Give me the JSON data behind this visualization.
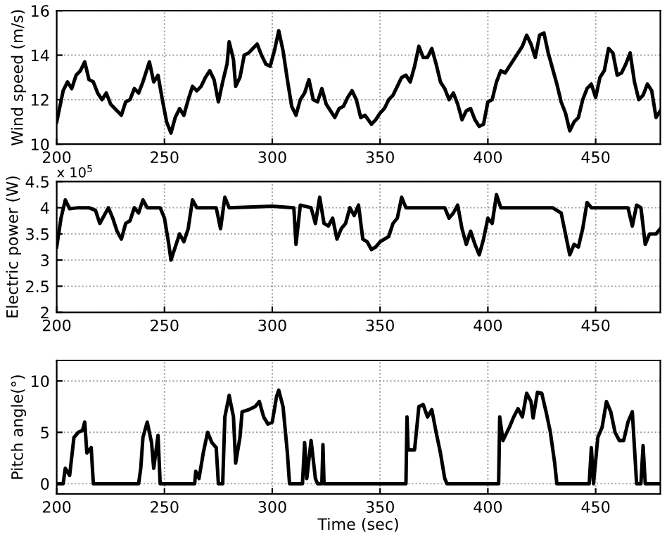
{
  "chart_data": [
    {
      "type": "line",
      "ylabel": "Wind speed (m/s)",
      "xlim": [
        200,
        480
      ],
      "ylim": [
        10,
        16
      ],
      "xticks": [
        200,
        250,
        300,
        350,
        400,
        450
      ],
      "yticks": [
        10,
        12,
        14,
        16
      ],
      "grid": true,
      "line_style": "solid",
      "series": [
        {
          "color": "#000000",
          "x": [
            200,
            203,
            205,
            207,
            209,
            211,
            213,
            215,
            217,
            219,
            221,
            223,
            225,
            228,
            230,
            232,
            234,
            236,
            238,
            240,
            242,
            243,
            245,
            247,
            249,
            251,
            253,
            255,
            257,
            259,
            261,
            263,
            265,
            267,
            269,
            271,
            273,
            275,
            277,
            279,
            280,
            282,
            283,
            285,
            287,
            289,
            291,
            293,
            295,
            297,
            299,
            301,
            303,
            305,
            307,
            309,
            311,
            313,
            315,
            317,
            319,
            321,
            323,
            325,
            327,
            329,
            331,
            333,
            335,
            337,
            339,
            341,
            343,
            346,
            348,
            350,
            352,
            354,
            356,
            358,
            360,
            362,
            364,
            366,
            368,
            370,
            372,
            374,
            376,
            378,
            380,
            382,
            384,
            386,
            388,
            390,
            392,
            394,
            396,
            398,
            400,
            402,
            404,
            406,
            408,
            410,
            412,
            414,
            416,
            418,
            420,
            422,
            424,
            426,
            428,
            430,
            432,
            434,
            436,
            438,
            440,
            442,
            444,
            446,
            448,
            450,
            452,
            454,
            456,
            458,
            460,
            462,
            464,
            466,
            468,
            470,
            472,
            474,
            476,
            478,
            480
          ],
          "values": [
            11.0,
            12.4,
            12.8,
            12.5,
            13.1,
            13.3,
            13.7,
            12.9,
            12.8,
            12.3,
            12.0,
            12.3,
            11.8,
            11.5,
            11.3,
            11.9,
            12.0,
            12.5,
            12.3,
            12.8,
            13.4,
            13.7,
            12.8,
            13.1,
            12.0,
            11.0,
            10.5,
            11.2,
            11.6,
            11.3,
            12.0,
            12.6,
            12.4,
            12.6,
            13.0,
            13.3,
            12.9,
            11.9,
            12.8,
            13.6,
            14.6,
            13.8,
            12.6,
            13.0,
            14.0,
            14.1,
            14.3,
            14.5,
            14.0,
            13.6,
            13.5,
            14.2,
            15.1,
            14.2,
            12.9,
            11.7,
            11.3,
            12.0,
            12.3,
            12.9,
            12.0,
            11.9,
            12.5,
            11.8,
            11.5,
            11.2,
            11.6,
            11.7,
            12.1,
            12.4,
            12.0,
            11.2,
            11.3,
            10.9,
            11.1,
            11.4,
            11.6,
            12.0,
            12.2,
            12.6,
            13.0,
            13.1,
            12.8,
            13.5,
            14.4,
            13.9,
            13.9,
            14.3,
            13.6,
            12.8,
            12.5,
            12.0,
            12.3,
            11.8,
            11.1,
            11.5,
            11.6,
            11.1,
            10.8,
            10.9,
            11.9,
            12.0,
            12.8,
            13.3,
            13.2,
            13.5,
            13.8,
            14.1,
            14.4,
            14.9,
            14.5,
            13.9,
            14.9,
            15.0,
            14.1,
            13.4,
            12.7,
            11.9,
            11.4,
            10.6,
            11.0,
            11.2,
            12.0,
            12.5,
            12.7,
            12.1,
            13.0,
            13.3,
            14.3,
            14.1,
            13.1,
            13.2,
            13.6,
            14.1,
            12.8,
            12.0,
            12.2,
            12.7,
            12.4,
            11.2,
            11.5
          ]
        }
      ]
    },
    {
      "type": "line",
      "ylabel": "Electric power (W)",
      "annotations": [
        "x 10$^{5}$"
      ],
      "xlim": [
        200,
        480
      ],
      "ylim": [
        2,
        4.5
      ],
      "xticks": [
        200,
        250,
        300,
        350,
        400,
        450
      ],
      "yticks": [
        2,
        2.5,
        3,
        3.5,
        4,
        4.5
      ],
      "grid": true,
      "line_style": "solid",
      "series": [
        {
          "color": "#000000",
          "x": [
            200,
            202,
            204,
            206,
            210,
            215,
            218,
            220,
            222,
            224,
            226,
            228,
            230,
            232,
            234,
            236,
            238,
            240,
            242,
            248,
            250,
            252,
            253,
            255,
            257,
            259,
            261,
            263,
            265,
            274,
            276,
            278,
            280,
            300,
            310,
            311,
            313,
            318,
            320,
            322,
            324,
            326,
            328,
            330,
            332,
            334,
            336,
            338,
            340,
            342,
            344,
            346,
            348,
            350,
            352,
            354,
            356,
            358,
            360,
            362,
            380,
            382,
            384,
            386,
            388,
            390,
            392,
            394,
            396,
            398,
            400,
            402,
            404,
            406,
            430,
            434,
            436,
            438,
            440,
            442,
            444,
            446,
            448,
            465,
            467,
            469,
            471,
            473,
            475,
            478,
            480
          ],
          "values": [
            3.25,
            3.8,
            4.15,
            3.98,
            4.0,
            4.0,
            3.95,
            3.7,
            3.85,
            4.0,
            3.8,
            3.55,
            3.4,
            3.7,
            3.75,
            4.0,
            3.9,
            4.15,
            4.0,
            4.0,
            3.8,
            3.3,
            3.0,
            3.25,
            3.5,
            3.35,
            3.6,
            4.15,
            4.0,
            4.0,
            3.6,
            4.2,
            4.0,
            4.03,
            4.0,
            3.3,
            4.05,
            4.0,
            3.7,
            4.2,
            3.7,
            3.65,
            3.8,
            3.4,
            3.6,
            3.7,
            4.0,
            3.85,
            4.05,
            3.4,
            3.35,
            3.2,
            3.25,
            3.35,
            3.4,
            3.45,
            3.7,
            3.8,
            4.2,
            4.0,
            4.0,
            3.8,
            3.9,
            4.05,
            3.6,
            3.3,
            3.55,
            3.3,
            3.1,
            3.4,
            3.8,
            3.7,
            4.25,
            4.0,
            4.0,
            3.9,
            3.5,
            3.1,
            3.3,
            3.25,
            3.6,
            4.1,
            4.0,
            4.0,
            3.65,
            4.05,
            4.0,
            3.3,
            3.5,
            3.5,
            3.6
          ]
        }
      ]
    },
    {
      "type": "line",
      "xlabel": "Time (sec)",
      "ylabel": "Pitch angle(°)",
      "xlim": [
        200,
        480
      ],
      "ylim": [
        -1,
        12
      ],
      "xticks": [
        200,
        250,
        300,
        350,
        400,
        450
      ],
      "yticks": [
        0,
        5,
        10
      ],
      "grid": true,
      "line_style": "solid",
      "series": [
        {
          "color": "#000000",
          "x": [
            200,
            203,
            204,
            206,
            208,
            210,
            212,
            213,
            214,
            216,
            217,
            238,
            239,
            240,
            242,
            244,
            245,
            247,
            248,
            264,
            264.5,
            266,
            268,
            270,
            272,
            274,
            275,
            277,
            278,
            280,
            282,
            283,
            285,
            286,
            289,
            292,
            294,
            296,
            298,
            300,
            302,
            303,
            305,
            307,
            308,
            314,
            315,
            316,
            318,
            320,
            321,
            323,
            323.5,
            324,
            362,
            362.5,
            363,
            366,
            368,
            370,
            372,
            374,
            376,
            378,
            380,
            381,
            405,
            405.5,
            407,
            410,
            412,
            414,
            416,
            418,
            420,
            421,
            423,
            425,
            427,
            429,
            431,
            432,
            447,
            448,
            449,
            451,
            453,
            455,
            457,
            459,
            461,
            463,
            465,
            467,
            469,
            471,
            472,
            473,
            480
          ],
          "values": [
            0,
            0,
            1.5,
            0.8,
            4.5,
            5.0,
            5.2,
            6.0,
            3.0,
            3.5,
            0,
            0,
            1.5,
            4.5,
            6.0,
            4.0,
            1.5,
            4.7,
            0,
            0,
            1.2,
            0.5,
            3.0,
            5.0,
            4.0,
            3.5,
            0,
            0,
            6.5,
            8.6,
            6.5,
            2.0,
            4.5,
            7.0,
            7.2,
            7.5,
            8.0,
            6.5,
            5.8,
            6.0,
            8.5,
            9.1,
            7.5,
            3.0,
            0,
            0,
            4.0,
            0.5,
            4.2,
            0.5,
            0,
            0,
            3.8,
            0,
            0,
            6.5,
            3.3,
            3.3,
            7.5,
            7.7,
            6.5,
            7.2,
            5.0,
            3.0,
            0.5,
            0,
            0,
            6.5,
            4.2,
            5.5,
            6.5,
            7.3,
            6.5,
            8.8,
            8.0,
            6.4,
            8.9,
            8.8,
            7.0,
            5.0,
            2.0,
            0,
            0,
            3.5,
            0,
            4.5,
            5.5,
            8.0,
            7.0,
            5.0,
            4.2,
            4.2,
            6.0,
            7.0,
            0,
            0,
            3.7,
            0,
            0
          ]
        }
      ]
    }
  ]
}
